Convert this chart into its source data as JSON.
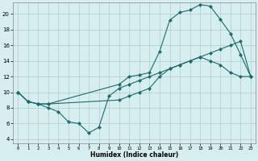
{
  "xlabel": "Humidex (Indice chaleur)",
  "bg_color": "#d7eef0",
  "grid_color": "#b0cccc",
  "line_color": "#1a6b6b",
  "xlim": [
    -0.5,
    23.5
  ],
  "ylim": [
    3.5,
    21.5
  ],
  "yticks": [
    4,
    6,
    8,
    10,
    12,
    14,
    16,
    18,
    20
  ],
  "xticks": [
    0,
    1,
    2,
    3,
    4,
    5,
    6,
    7,
    8,
    9,
    10,
    11,
    12,
    13,
    14,
    15,
    16,
    17,
    18,
    19,
    20,
    21,
    22,
    23
  ],
  "line_top_x": [
    0,
    1,
    2,
    3,
    10,
    11,
    12,
    13,
    14,
    15,
    16,
    17,
    18,
    19,
    20,
    21,
    22,
    23
  ],
  "line_top_y": [
    10,
    8.8,
    8.5,
    8.5,
    11,
    12,
    12.2,
    12.5,
    15.2,
    19.2,
    20.2,
    20.5,
    21.2,
    21.0,
    19.3,
    17.5,
    14.8,
    12.0
  ],
  "line_mid_x": [
    0,
    1,
    2,
    3,
    10,
    11,
    12,
    13,
    14,
    15,
    16,
    17,
    18,
    19,
    20,
    21,
    22,
    23
  ],
  "line_mid_y": [
    10,
    8.8,
    8.5,
    8.5,
    9,
    9.5,
    10,
    10.5,
    12.0,
    13.0,
    13.5,
    14.0,
    14.5,
    14.0,
    13.5,
    12.5,
    12.0,
    12.0
  ],
  "line_bot_x": [
    0,
    1,
    2,
    3,
    4,
    5,
    6,
    7,
    8,
    9,
    10,
    11,
    12,
    13,
    14,
    15,
    16,
    17,
    18,
    19,
    20,
    21,
    22,
    23
  ],
  "line_bot_y": [
    10,
    8.8,
    8.5,
    8.0,
    7.5,
    6.2,
    6.0,
    4.8,
    5.5,
    9.5,
    10.5,
    11.0,
    11.5,
    12.0,
    12.5,
    13.0,
    13.5,
    14.0,
    14.5,
    15.0,
    15.5,
    16.0,
    16.5,
    12.0
  ]
}
